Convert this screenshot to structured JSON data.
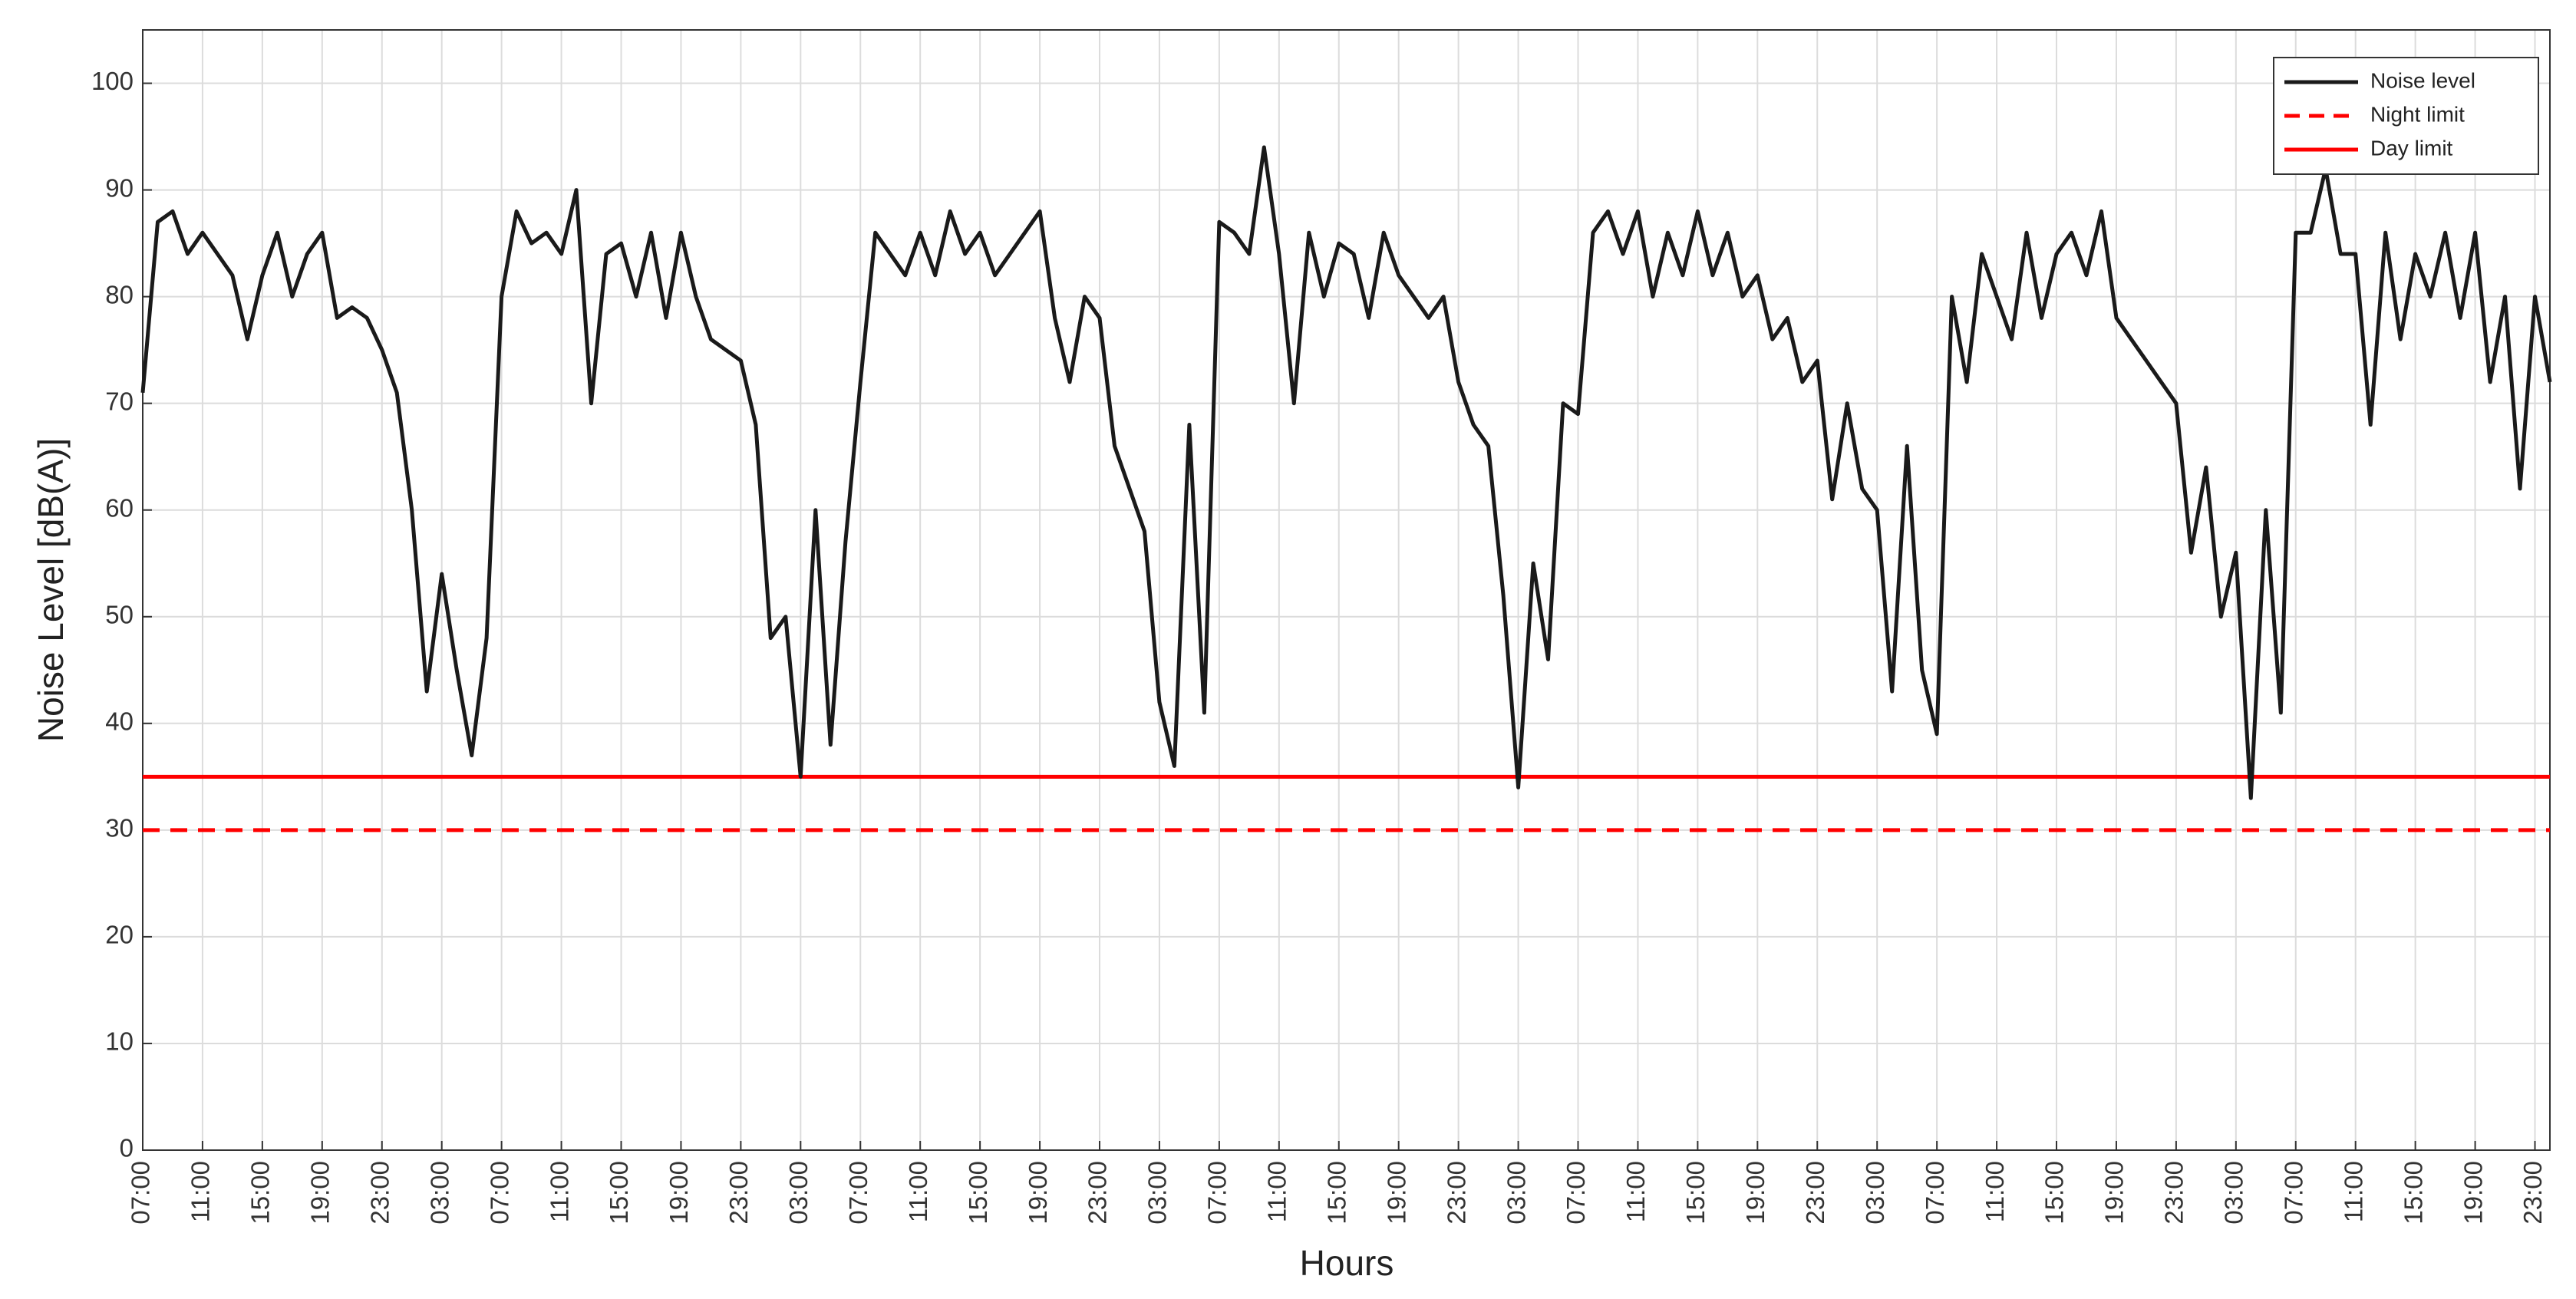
{
  "chart_data": {
    "type": "line",
    "y_label": "Noise Level [dB(A)]",
    "x_label": "Hours",
    "xlim": [
      0,
      161
    ],
    "ylim": [
      0,
      105
    ],
    "yticks": [
      0,
      10,
      20,
      30,
      40,
      50,
      60,
      70,
      80,
      90,
      100
    ],
    "xticks": [
      {
        "value": 0,
        "label": "07:00"
      },
      {
        "value": 4,
        "label": "11:00"
      },
      {
        "value": 8,
        "label": "15:00"
      },
      {
        "value": 12,
        "label": "19:00"
      },
      {
        "value": 16,
        "label": "23:00"
      },
      {
        "value": 20,
        "label": "03:00"
      },
      {
        "value": 24,
        "label": "07:00"
      },
      {
        "value": 28,
        "label": "11:00"
      },
      {
        "value": 32,
        "label": "15:00"
      },
      {
        "value": 36,
        "label": "19:00"
      },
      {
        "value": 40,
        "label": "23:00"
      },
      {
        "value": 44,
        "label": "03:00"
      },
      {
        "value": 48,
        "label": "07:00"
      },
      {
        "value": 52,
        "label": "11:00"
      },
      {
        "value": 56,
        "label": "15:00"
      },
      {
        "value": 60,
        "label": "19:00"
      },
      {
        "value": 64,
        "label": "23:00"
      },
      {
        "value": 68,
        "label": "03:00"
      },
      {
        "value": 72,
        "label": "07:00"
      },
      {
        "value": 76,
        "label": "11:00"
      },
      {
        "value": 80,
        "label": "15:00"
      },
      {
        "value": 84,
        "label": "19:00"
      },
      {
        "value": 88,
        "label": "23:00"
      },
      {
        "value": 92,
        "label": "03:00"
      },
      {
        "value": 96,
        "label": "07:00"
      },
      {
        "value": 100,
        "label": "11:00"
      },
      {
        "value": 104,
        "label": "15:00"
      },
      {
        "value": 108,
        "label": "19:00"
      },
      {
        "value": 112,
        "label": "23:00"
      },
      {
        "value": 116,
        "label": "03:00"
      },
      {
        "value": 120,
        "label": "07:00"
      },
      {
        "value": 124,
        "label": "11:00"
      },
      {
        "value": 128,
        "label": "15:00"
      },
      {
        "value": 132,
        "label": "19:00"
      },
      {
        "value": 136,
        "label": "23:00"
      },
      {
        "value": 140,
        "label": "03:00"
      },
      {
        "value": 144,
        "label": "07:00"
      },
      {
        "value": 148,
        "label": "11:00"
      },
      {
        "value": 152,
        "label": "15:00"
      },
      {
        "value": 156,
        "label": "19:00"
      },
      {
        "value": 160,
        "label": "23:00"
      }
    ],
    "grid": true,
    "legend_position": "upper-right",
    "x": [
      0,
      1,
      2,
      3,
      4,
      5,
      6,
      7,
      8,
      9,
      10,
      11,
      12,
      13,
      14,
      15,
      16,
      17,
      18,
      19,
      20,
      21,
      22,
      23,
      24,
      25,
      26,
      27,
      28,
      29,
      30,
      31,
      32,
      33,
      34,
      35,
      36,
      37,
      38,
      39,
      40,
      41,
      42,
      43,
      44,
      45,
      46,
      47,
      48,
      49,
      50,
      51,
      52,
      53,
      54,
      55,
      56,
      57,
      58,
      59,
      60,
      61,
      62,
      63,
      64,
      65,
      66,
      67,
      68,
      69,
      70,
      71,
      72,
      73,
      74,
      75,
      76,
      77,
      78,
      79,
      80,
      81,
      82,
      83,
      84,
      85,
      86,
      87,
      88,
      89,
      90,
      91,
      92,
      93,
      94,
      95,
      96,
      97,
      98,
      99,
      100,
      101,
      102,
      103,
      104,
      105,
      106,
      107,
      108,
      109,
      110,
      111,
      112,
      113,
      114,
      115,
      116,
      117,
      118,
      119,
      120,
      121,
      122,
      123,
      124,
      125,
      126,
      127,
      128,
      129,
      130,
      131,
      132,
      133,
      134,
      135,
      136,
      137,
      138,
      139,
      140,
      141,
      142,
      143,
      144,
      145,
      146,
      147,
      148,
      149,
      150,
      151,
      152,
      153,
      154,
      155,
      156,
      157,
      158,
      159,
      160,
      161
    ],
    "series": [
      {
        "name": "Noise level",
        "color": "#1a1a1a",
        "values": [
          71,
          87,
          88,
          84,
          86,
          84,
          82,
          76,
          82,
          86,
          80,
          84,
          86,
          78,
          79,
          78,
          75,
          71,
          60,
          43,
          54,
          45,
          37,
          48,
          80,
          88,
          85,
          86,
          84,
          90,
          70,
          84,
          85,
          80,
          86,
          78,
          86,
          80,
          76,
          75,
          74,
          68,
          48,
          50,
          35,
          60,
          38,
          57,
          72,
          86,
          84,
          82,
          86,
          82,
          88,
          84,
          86,
          82,
          84,
          86,
          88,
          78,
          72,
          80,
          78,
          66,
          62,
          58,
          42,
          36,
          68,
          41,
          87,
          86,
          84,
          94,
          84,
          70,
          86,
          80,
          85,
          84,
          78,
          86,
          82,
          80,
          78,
          80,
          72,
          68,
          66,
          52,
          34,
          55,
          46,
          70,
          69,
          86,
          88,
          84,
          88,
          80,
          86,
          82,
          88,
          82,
          86,
          80,
          82,
          76,
          78,
          72,
          74,
          61,
          70,
          62,
          60,
          43,
          66,
          45,
          39,
          80,
          72,
          84,
          80,
          76,
          86,
          78,
          84,
          86,
          82,
          88,
          78,
          76,
          74,
          72,
          70,
          56,
          64,
          50,
          56,
          33,
          60,
          41,
          86,
          86,
          92,
          84,
          84,
          68,
          86,
          76,
          84,
          80,
          86,
          78,
          86,
          72,
          80,
          62,
          80,
          72
        ]
      }
    ],
    "hlines": [
      {
        "name": "Night limit",
        "color": "#ff0000",
        "value": 30,
        "dashed": true
      },
      {
        "name": "Day limit",
        "color": "#ff0000",
        "value": 35,
        "dashed": false
      }
    ]
  }
}
